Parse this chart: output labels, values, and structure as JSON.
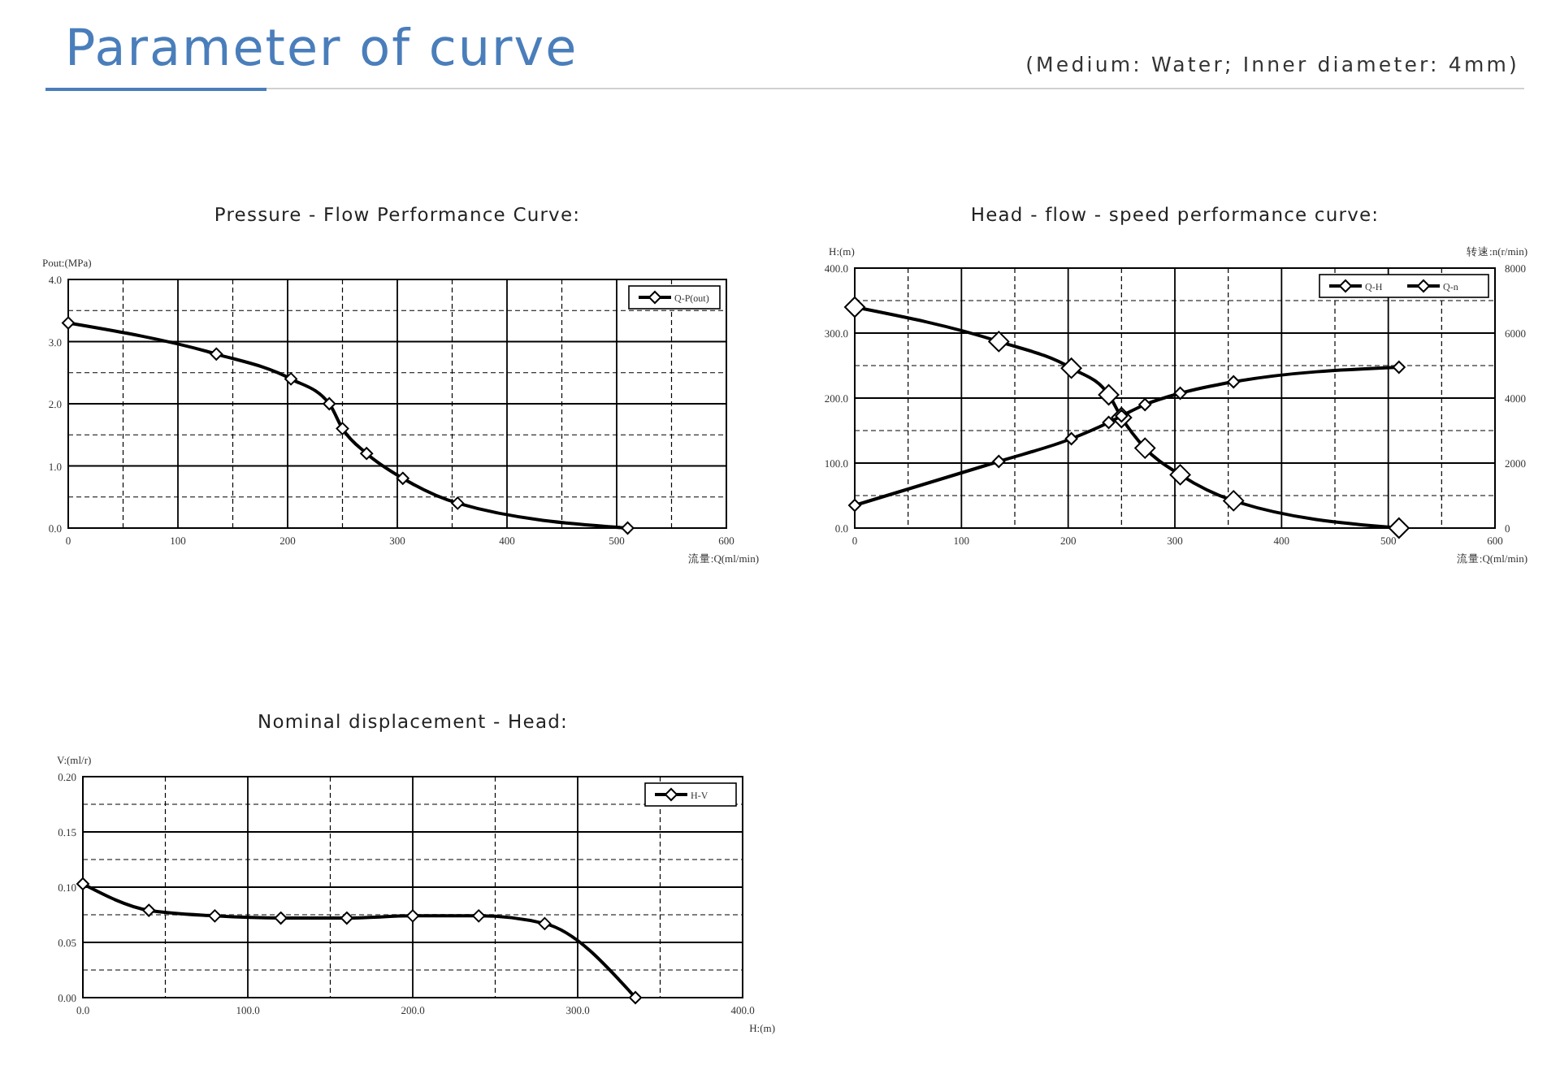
{
  "chart_data": [
    {
      "type": "other",
      "title": "Parameter of curve",
      "subtitle": "(Medium: Water; Inner diameter: 4mm)"
    },
    {
      "type": "line",
      "title": "Pressure - Flow Performance Curve:",
      "ylabel": "Pout:(MPa)",
      "xlabel": "流量:Q(ml/min)",
      "marker": "diamond",
      "line_style": "solid",
      "grid": true,
      "legend": "top right",
      "xlim": [
        0,
        600
      ],
      "xticks": [
        0,
        {
          "value": 50,
          "label": null
        },
        100,
        {
          "value": 150,
          "label": null
        },
        200,
        {
          "value": 250,
          "label": null
        },
        300,
        {
          "value": 350,
          "label": null
        },
        400,
        {
          "value": 450,
          "label": null
        },
        500,
        {
          "value": 550,
          "label": null
        },
        600
      ],
      "ylim": [
        0,
        4
      ],
      "yticks": [
        {
          "value": 0,
          "label": "0.0"
        },
        {
          "value": 0.5,
          "label": null
        },
        {
          "value": 1,
          "label": "1.0"
        },
        {
          "value": 1.5,
          "label": null
        },
        {
          "value": 2,
          "label": "2.0"
        },
        {
          "value": 2.5,
          "label": null
        },
        {
          "value": 3,
          "label": "3.0"
        },
        {
          "value": 3.5,
          "label": null
        },
        {
          "value": 4,
          "label": "4.0"
        }
      ],
      "series": [
        {
          "name": "Q-P(out)",
          "color": "#000000",
          "x": [
            0,
            135,
            203,
            238,
            250,
            272,
            305,
            355,
            510
          ],
          "values": [
            3.3,
            2.8,
            2.4,
            2.0,
            1.6,
            1.2,
            0.8,
            0.4,
            0.0
          ]
        }
      ]
    },
    {
      "type": "line",
      "title": "Head - flow - speed performance curve:",
      "ylabel": "H:(m)",
      "y2label": "转速:n(r/min)",
      "xlabel": "流量:Q(ml/min)",
      "marker": "diamond",
      "line_style": "solid",
      "grid": true,
      "legend": "top right",
      "xlim": [
        0,
        600
      ],
      "xticks": [
        0,
        {
          "value": 50,
          "label": null
        },
        100,
        {
          "value": 150,
          "label": null
        },
        200,
        {
          "value": 250,
          "label": null
        },
        300,
        {
          "value": 350,
          "label": null
        },
        400,
        {
          "value": 450,
          "label": null
        },
        500,
        {
          "value": 550,
          "label": null
        },
        600
      ],
      "ylim": [
        0,
        400
      ],
      "yticks": [
        {
          "value": 0,
          "label": "0.0"
        },
        {
          "value": 50,
          "label": null
        },
        {
          "value": 100,
          "label": "100.0"
        },
        {
          "value": 150,
          "label": null
        },
        {
          "value": 200,
          "label": "200.0"
        },
        {
          "value": 250,
          "label": null
        },
        {
          "value": 300,
          "label": "300.0"
        },
        {
          "value": 350,
          "label": null
        },
        {
          "value": 400,
          "label": "400.0"
        }
      ],
      "y2lim": [
        0,
        8000
      ],
      "y2ticks": [
        0,
        2000,
        4000,
        6000,
        8000
      ],
      "series": [
        {
          "name": "Q-H",
          "color": "#000000",
          "x": [
            0,
            135,
            203,
            238,
            250,
            272,
            305,
            355,
            510
          ],
          "values": [
            340,
            287,
            246,
            205,
            170,
            123,
            82,
            42,
            0
          ]
        },
        {
          "name": "Q-n",
          "color": "#000000",
          "axis": "y2",
          "x": [
            0,
            135,
            203,
            238,
            250,
            272,
            305,
            355,
            510
          ],
          "values": [
            700,
            2050,
            2750,
            3250,
            3450,
            3800,
            4150,
            4500,
            4950
          ]
        }
      ]
    },
    {
      "type": "line",
      "title": "Nominal displacement - Head:",
      "ylabel": "V:(ml/r)",
      "xlabel": "H:(m)",
      "marker": "diamond",
      "line_style": "solid",
      "grid": true,
      "legend": "top right",
      "xlim": [
        0,
        400
      ],
      "xticks": [
        {
          "value": 0,
          "label": "0.0"
        },
        {
          "value": 50,
          "label": null
        },
        {
          "value": 100,
          "label": "100.0"
        },
        {
          "value": 150,
          "label": null
        },
        {
          "value": 200,
          "label": "200.0"
        },
        {
          "value": 250,
          "label": null
        },
        {
          "value": 300,
          "label": "300.0"
        },
        {
          "value": 350,
          "label": null
        },
        {
          "value": 400,
          "label": "400.0"
        }
      ],
      "ylim": [
        0,
        0.2
      ],
      "yticks": [
        {
          "value": 0,
          "label": "0.00"
        },
        {
          "value": 0.025,
          "label": null
        },
        {
          "value": 0.05,
          "label": "0.05"
        },
        {
          "value": 0.075,
          "label": null
        },
        {
          "value": 0.1,
          "label": "0.10"
        },
        {
          "value": 0.125,
          "label": null
        },
        {
          "value": 0.15,
          "label": "0.15"
        },
        {
          "value": 0.175,
          "label": null
        },
        {
          "value": 0.2,
          "label": "0.20"
        }
      ],
      "series": [
        {
          "name": "H-V",
          "color": "#000000",
          "x": [
            0,
            40,
            80,
            120,
            160,
            200,
            240,
            280,
            335
          ],
          "values": [
            0.103,
            0.079,
            0.074,
            0.072,
            0.072,
            0.074,
            0.074,
            0.067,
            0.0
          ]
        }
      ]
    }
  ]
}
